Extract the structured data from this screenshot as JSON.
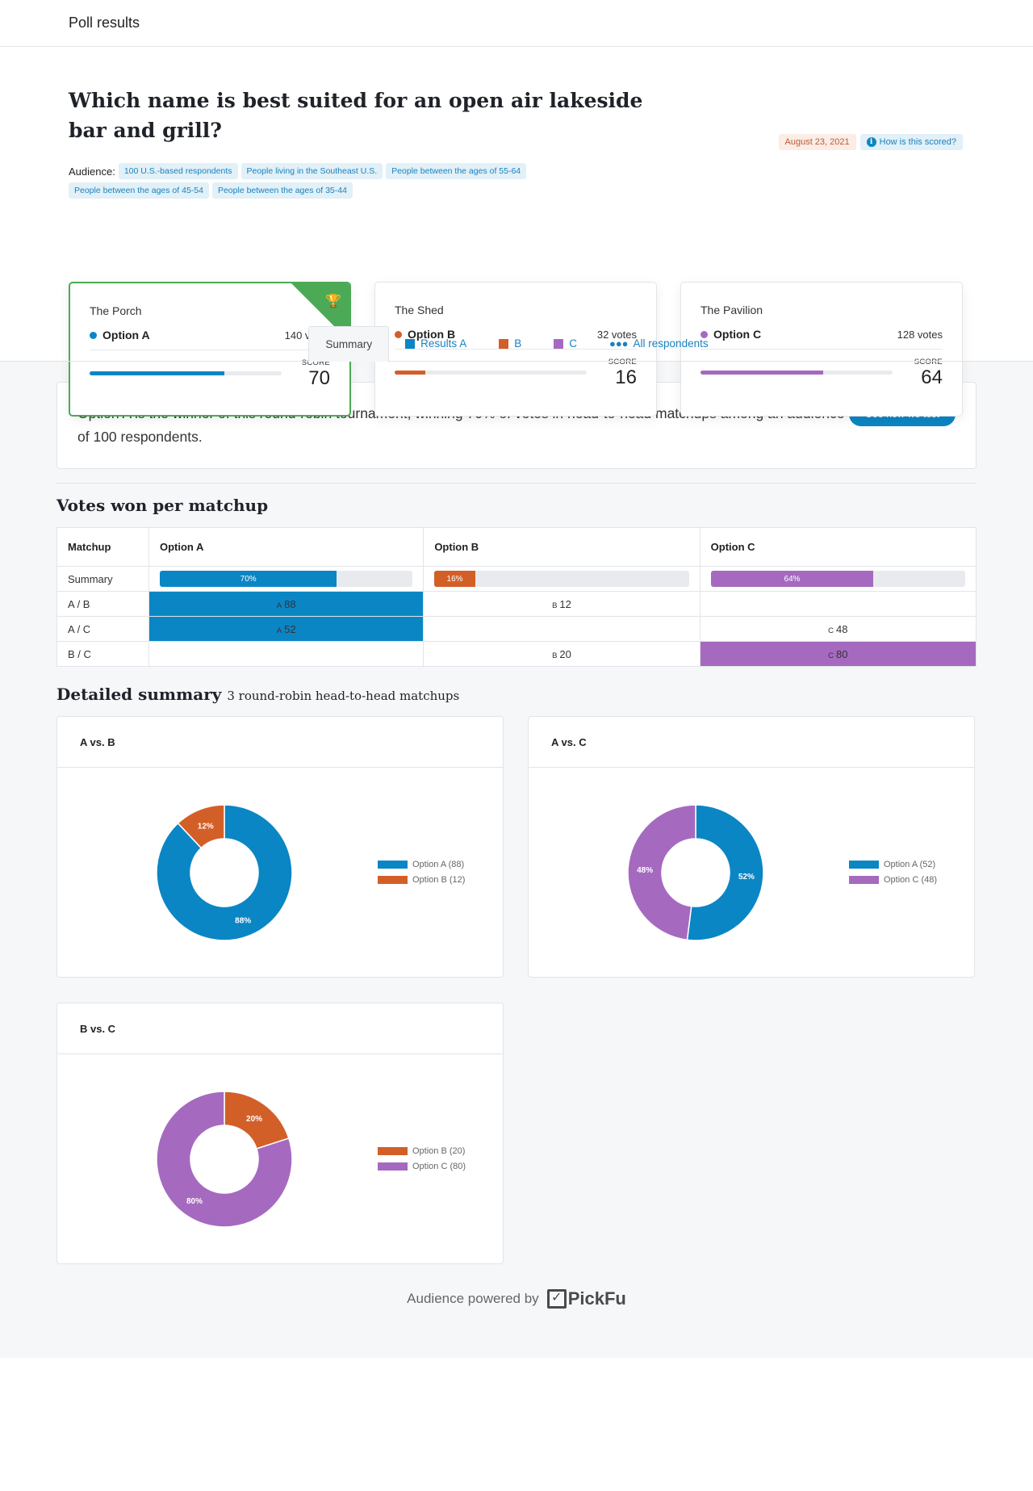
{
  "topbar": {
    "title": "Poll results"
  },
  "hero": {
    "question": "Which name is best suited for an open air lakeside bar and grill?",
    "date": "August 23, 2021",
    "scoring_link": "How is this scored?",
    "audience_label": "Audience:",
    "audience_chips": [
      "100 U.S.-based respondents",
      "People living in the Southeast U.S.",
      "People between the ages of 55-64",
      "People between the ages of 45-54",
      "People between the ages of 35-44"
    ]
  },
  "colors": {
    "a": "#0b86c4",
    "b": "#d35f28",
    "c": "#a56abf",
    "winner": "#4caa56"
  },
  "options": [
    {
      "name": "The Porch",
      "label": "Option A",
      "votes": "140 votes",
      "score_label": "SCORE",
      "score": 70,
      "color": "#0b86c4",
      "winner": true
    },
    {
      "name": "The Shed",
      "label": "Option B",
      "votes": "32 votes",
      "score_label": "SCORE",
      "score": 16,
      "color": "#d35f28",
      "winner": false
    },
    {
      "name": "The Pavilion",
      "label": "Option C",
      "votes": "128 votes",
      "score_label": "SCORE",
      "score": 64,
      "color": "#a56abf",
      "winner": false
    }
  ],
  "tabs": [
    {
      "label": "Summary",
      "active": true
    },
    {
      "label": "Results A",
      "color": "#0b86c4"
    },
    {
      "label": "B",
      "color": "#d35f28"
    },
    {
      "label": "C",
      "color": "#a56abf"
    },
    {
      "label": "All respondents",
      "icon": "people-icon"
    }
  ],
  "summary": {
    "text": "Option A is the winner of this round-robin tournament, winning 70% of votes in head-to-head matchups among an audience of 100 respondents.",
    "button": "See how we test"
  },
  "matchup_table": {
    "title": "Votes won per matchup",
    "headers": [
      "Matchup",
      "Option A",
      "Option B",
      "Option C"
    ],
    "summary_row": {
      "label": "Summary",
      "a": "70%",
      "b": "16%",
      "c": "64%",
      "a_val": 70,
      "b_val": 16,
      "c_val": 64
    },
    "rows": [
      {
        "label": "A / B",
        "a": "88",
        "b": "12",
        "c": "",
        "winner": "a"
      },
      {
        "label": "A / C",
        "a": "52",
        "b": "",
        "c": "48",
        "winner": "a"
      },
      {
        "label": "B / C",
        "a": "",
        "b": "20",
        "c": "80",
        "winner": "c"
      }
    ],
    "letters": {
      "a": "A",
      "b": "B",
      "c": "C"
    }
  },
  "detailed": {
    "title": "Detailed summary",
    "subtitle": "3 round-robin head-to-head matchups"
  },
  "chart_data": [
    {
      "type": "pie",
      "title": "A vs. B",
      "donut": true,
      "slices": [
        {
          "label": "Option A (88)",
          "value": 88,
          "pct_label": "88%",
          "color": "#0b86c4"
        },
        {
          "label": "Option B (12)",
          "value": 12,
          "pct_label": "12%",
          "color": "#d35f28"
        }
      ],
      "legend": "right"
    },
    {
      "type": "pie",
      "title": "A vs. C",
      "donut": true,
      "slices": [
        {
          "label": "Option A (52)",
          "value": 52,
          "pct_label": "52%",
          "color": "#0b86c4"
        },
        {
          "label": "Option C (48)",
          "value": 48,
          "pct_label": "48%",
          "color": "#a56abf"
        }
      ],
      "legend": "right"
    },
    {
      "type": "pie",
      "title": "B vs. C",
      "donut": true,
      "slices": [
        {
          "label": "Option B (20)",
          "value": 20,
          "pct_label": "20%",
          "color": "#d35f28"
        },
        {
          "label": "Option C (80)",
          "value": 80,
          "pct_label": "80%",
          "color": "#a56abf"
        }
      ],
      "legend": "right"
    }
  ],
  "footer": {
    "text": "Audience powered by",
    "brand": "PickFu"
  }
}
